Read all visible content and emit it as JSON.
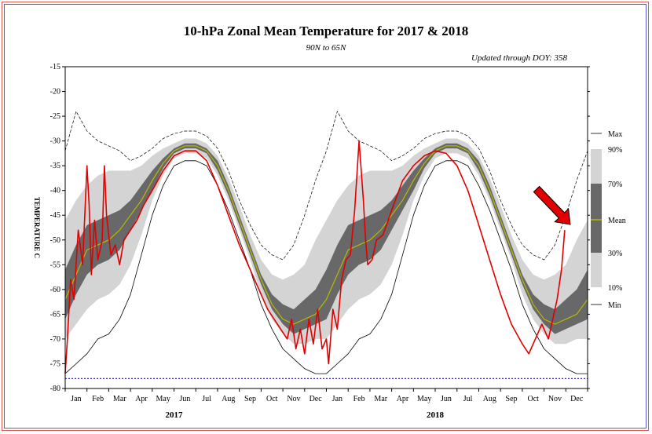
{
  "chart_data": {
    "type": "line",
    "title": "10-hPa Zonal Mean Temperature for 2017 & 2018",
    "subtitle": "90N to 65N",
    "annotation": "Updated through DOY: 358",
    "ylabel": "TEMPERATURE C",
    "ylim": [
      -80,
      -15
    ],
    "yticks": [
      -15,
      -20,
      -25,
      -30,
      -35,
      -40,
      -45,
      -50,
      -55,
      -60,
      -65,
      -70,
      -75,
      -80
    ],
    "x_unit": "month",
    "xlim": [
      0,
      24
    ],
    "month_labels": [
      "Jan",
      "Feb",
      "Mar",
      "Apr",
      "May",
      "Jun",
      "Jul",
      "Aug",
      "Sep",
      "Oct",
      "Nov",
      "Dec",
      "Jan",
      "Feb",
      "Mar",
      "Apr",
      "May",
      "Jun",
      "Jul",
      "Aug",
      "Sep",
      "Oct",
      "Nov",
      "Dec"
    ],
    "year_labels": [
      "2017",
      "2018"
    ],
    "reference_line": -78,
    "legend": [
      "Max",
      "90%",
      "70%",
      "Mean",
      "30%",
      "10%",
      "Min"
    ],
    "colors": {
      "band_10_90": "#d4d4d4",
      "band_30_70": "#686868",
      "mean": "#b8b800",
      "observed": "#e00000",
      "maxmin": "#000000",
      "reference": "#3030d0",
      "arrow": "#e00000"
    },
    "climatology": {
      "x": [
        0,
        0.5,
        1,
        1.5,
        2,
        2.5,
        3,
        3.5,
        4,
        4.5,
        5,
        5.5,
        6,
        6.5,
        7,
        7.5,
        8,
        8.5,
        9,
        9.5,
        10,
        10.5,
        11,
        11.5,
        12
      ],
      "mean": [
        -62,
        -57,
        -52,
        -51,
        -50,
        -48,
        -45,
        -42,
        -38,
        -34.5,
        -32,
        -31,
        -31,
        -32,
        -35,
        -40,
        -46,
        -52,
        -58,
        -63,
        -66,
        -67,
        -66,
        -65,
        -62
      ],
      "p10": [
        -70,
        -67,
        -64,
        -62,
        -61,
        -59,
        -55,
        -49,
        -42,
        -37,
        -33.5,
        -32.5,
        -32.5,
        -33.5,
        -37,
        -42,
        -48,
        -54,
        -61,
        -66,
        -69,
        -71,
        -71,
        -70,
        -70
      ],
      "p30": [
        -66,
        -61,
        -57,
        -55,
        -54,
        -52,
        -48,
        -44,
        -40,
        -35.5,
        -32.5,
        -31.5,
        -31.5,
        -32.5,
        -36,
        -41,
        -47,
        -53,
        -59,
        -64,
        -67,
        -69,
        -68,
        -67,
        -66
      ],
      "p70": [
        -56,
        -51,
        -47,
        -46,
        -45,
        -44,
        -42,
        -39,
        -36,
        -33.5,
        -31.5,
        -30.5,
        -30.5,
        -31.5,
        -34,
        -39,
        -45,
        -51,
        -57,
        -61,
        -63,
        -64,
        -62,
        -60,
        -56
      ],
      "p90": [
        -46,
        -42,
        -39,
        -37,
        -36,
        -36,
        -36,
        -35,
        -33,
        -31.5,
        -30.5,
        -29.5,
        -29.5,
        -30.5,
        -33,
        -37.5,
        -43,
        -49,
        -54,
        -57,
        -58,
        -57,
        -55,
        -50,
        -46
      ],
      "max": [
        -32,
        -24,
        -28,
        -30,
        -31,
        -32,
        -34,
        -33,
        -31.5,
        -29.5,
        -28.5,
        -28,
        -28,
        -29,
        -31.5,
        -36,
        -42,
        -47,
        -51,
        -53,
        -54,
        -51,
        -45,
        -38,
        -32
      ],
      "min": [
        -77,
        -75,
        -73,
        -70,
        -69,
        -66,
        -61,
        -53,
        -45,
        -39,
        -35,
        -34,
        -34,
        -35,
        -39,
        -44,
        -50,
        -56,
        -63,
        -68,
        -72,
        -74,
        -76,
        -77,
        -77
      ]
    },
    "observed_2017_2018": {
      "x": [
        0,
        0.1,
        0.25,
        0.4,
        0.6,
        0.8,
        1.0,
        1.1,
        1.2,
        1.35,
        1.5,
        1.7,
        1.8,
        1.9,
        2.1,
        2.3,
        2.5,
        2.7,
        3.0,
        3.3,
        3.6,
        4.0,
        4.5,
        5.0,
        5.5,
        6.0,
        6.5,
        7.0,
        7.5,
        8.0,
        8.5,
        9.0,
        9.3,
        9.6,
        9.9,
        10.2,
        10.4,
        10.6,
        10.8,
        11.0,
        11.2,
        11.4,
        11.6,
        11.8,
        12.0,
        12.1,
        12.3,
        12.5,
        12.7,
        12.9,
        13.1,
        13.3,
        13.5,
        13.7,
        13.8,
        13.9,
        14.1,
        14.3,
        14.6,
        15.0,
        15.5,
        16.0,
        16.5,
        17.0,
        17.5,
        18.0,
        18.5,
        19.0,
        19.5,
        20.0,
        20.5,
        21.0,
        21.3,
        21.6,
        21.9,
        22.2,
        22.4,
        22.6,
        22.8,
        22.95
      ],
      "y": [
        -77,
        -70,
        -58,
        -62,
        -48,
        -55,
        -35,
        -43,
        -57,
        -46,
        -54,
        -50,
        -35,
        -45,
        -53,
        -51,
        -55,
        -50,
        -48,
        -46,
        -43,
        -40,
        -36,
        -33,
        -32,
        -32,
        -34,
        -39,
        -45,
        -51,
        -56,
        -61,
        -64,
        -66,
        -68,
        -70,
        -66,
        -72,
        -68,
        -73,
        -66,
        -71,
        -64,
        -72,
        -70,
        -75,
        -64,
        -68,
        -58,
        -54,
        -53,
        -44,
        -30,
        -42,
        -50,
        -55,
        -54,
        -50,
        -49,
        -44,
        -38,
        -35,
        -33,
        -32,
        -32.5,
        -35,
        -40,
        -47,
        -54,
        -61,
        -67,
        -71,
        -73,
        -70,
        -67,
        -70,
        -66,
        -62,
        -56,
        -48
      ]
    }
  },
  "header": {
    "title": "10-hPa Zonal Mean Temperature for 2017 & 2018",
    "subtitle": "90N to 65N",
    "updated": "Updated through DOY: 358"
  }
}
